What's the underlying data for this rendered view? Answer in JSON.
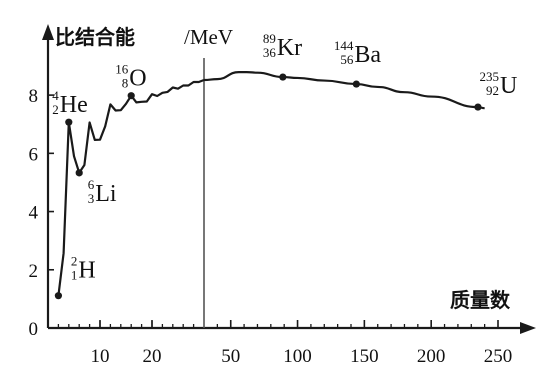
{
  "chart_data": {
    "type": "line",
    "title": "",
    "ylabel": "比结合能",
    "yunit": "/MeV",
    "xlabel": "质量数",
    "ylim": [
      0,
      9
    ],
    "y_ticks": [
      "0",
      "2",
      "4",
      "6",
      "8"
    ],
    "x_ticks_left": [
      "10",
      "20"
    ],
    "x_ticks_right": [
      "50",
      "100",
      "150",
      "200",
      "250"
    ],
    "x_scale_note": "left segment linear 0-30, right segment linear 30-250",
    "light_nuclei": {
      "x": [
        2,
        3,
        4,
        5,
        6,
        7,
        8,
        9,
        10,
        11,
        12,
        13,
        14,
        15,
        16,
        17,
        18,
        19,
        20,
        21,
        22,
        23,
        24,
        25,
        26,
        27,
        28,
        29,
        30
      ],
      "values": [
        1.11,
        2.57,
        7.07,
        5.9,
        5.33,
        5.6,
        7.06,
        6.46,
        6.47,
        6.93,
        7.68,
        7.47,
        7.48,
        7.7,
        7.98,
        7.75,
        7.77,
        7.78,
        8.03,
        7.97,
        8.08,
        8.11,
        8.26,
        8.22,
        8.33,
        8.33,
        8.45,
        8.45,
        8.52
      ]
    },
    "heavy_nuclei": {
      "x": [
        30,
        40,
        56,
        62,
        70,
        89,
        100,
        120,
        144,
        160,
        180,
        200,
        235,
        240
      ],
      "values": [
        8.52,
        8.55,
        8.79,
        8.79,
        8.77,
        8.62,
        8.59,
        8.5,
        8.38,
        8.28,
        8.1,
        7.95,
        7.59,
        7.55
      ]
    },
    "points": [
      {
        "name": "H-2",
        "symbol": "H",
        "A": "2",
        "Z": "1",
        "x": 2,
        "y": 1.11
      },
      {
        "name": "He-4",
        "symbol": "He",
        "A": "4",
        "Z": "2",
        "x": 4,
        "y": 7.07
      },
      {
        "name": "Li-6",
        "symbol": "Li",
        "A": "6",
        "Z": "3",
        "x": 6,
        "y": 5.33
      },
      {
        "name": "O-16",
        "symbol": "O",
        "A": "16",
        "Z": "8",
        "x": 16,
        "y": 7.98
      },
      {
        "name": "Kr-89",
        "symbol": "Kr",
        "A": "89",
        "Z": "36",
        "x": 89,
        "y": 8.62
      },
      {
        "name": "Ba-144",
        "symbol": "Ba",
        "A": "144",
        "Z": "56",
        "x": 144,
        "y": 8.38
      },
      {
        "name": "U-235",
        "symbol": "U",
        "A": "235",
        "Z": "92",
        "x": 235,
        "y": 7.59
      }
    ],
    "grid": false,
    "legend": "none",
    "line_color": "#1a1a1a",
    "divider_color": "#555555"
  }
}
